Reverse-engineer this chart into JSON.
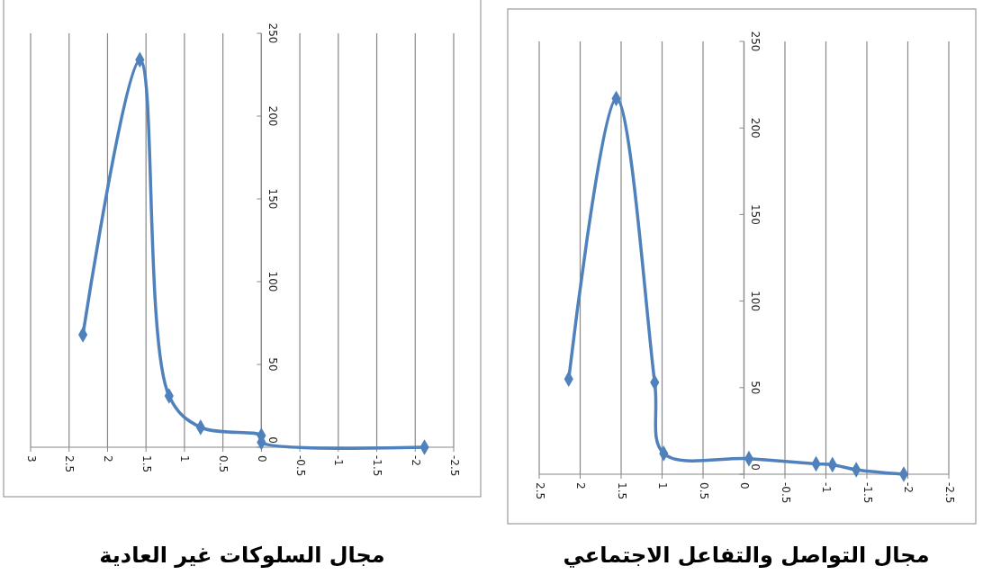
{
  "chart_data": [
    {
      "type": "line",
      "title": "مجال السلوكات غير العادية",
      "x": [
        2.32,
        1.58,
        1.2,
        0.79,
        0,
        0,
        -2.12
      ],
      "series": [
        {
          "color": "#4f81bd",
          "values": [
            68,
            234,
            31,
            12,
            7,
            3,
            0
          ]
        }
      ],
      "xlim": [
        3,
        -2.5
      ],
      "xticks": [
        3,
        2.5,
        2,
        1.5,
        1,
        0.5,
        0,
        -0.5,
        -1,
        -1.5,
        -2,
        -2.5
      ],
      "ylim": [
        0,
        250
      ],
      "yticks": [
        0,
        50,
        100,
        150,
        200,
        250
      ],
      "grid": "x",
      "marker": "diamond",
      "line_style": "solid"
    },
    {
      "type": "line",
      "title": "مجال التواصل والتفاعل الاجتماعي",
      "x": [
        2.14,
        1.56,
        1.09,
        0.98,
        -0.06,
        -0.88,
        -1.08,
        -1.37,
        -1.95
      ],
      "series": [
        {
          "color": "#4f81bd",
          "values": [
            55,
            217,
            53,
            12,
            9,
            6,
            5.5,
            2.6,
            0
          ]
        }
      ],
      "xlim": [
        2.5,
        -2.5
      ],
      "xticks": [
        2.5,
        2,
        1.5,
        1,
        0.5,
        0,
        -0.5,
        -1,
        -1.5,
        -2,
        -2.5
      ],
      "ylim": [
        0,
        250
      ],
      "yticks": [
        0,
        50,
        100,
        150,
        200,
        250
      ],
      "grid": "x",
      "marker": "diamond",
      "line_style": "solid"
    }
  ]
}
